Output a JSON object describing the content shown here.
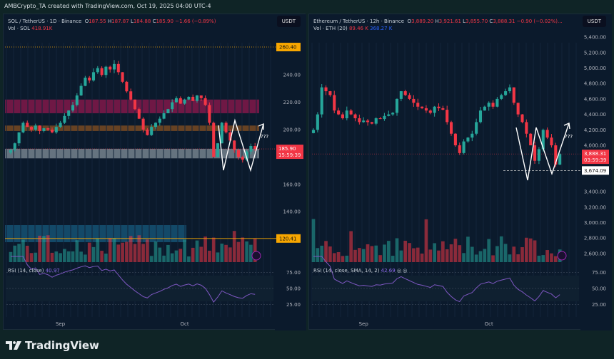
{
  "credit": "AMBCrypto_TA created with TradingView.com, Oct 19, 2025 04:00 UTC-4",
  "brand": "TradingView",
  "charts": [
    {
      "symbol": "SOL / TetherUS · 1D · Binance",
      "o": "187.55",
      "h": "187.87",
      "l": "184.88",
      "c": "185.90",
      "chg": "−1.66 (−0.89%)",
      "vol_label": "Vol · SOL",
      "vol_value": "418.91K",
      "vol_ma": "",
      "currency": "USDT",
      "rsi_label": "RSI (14, close)",
      "rsi_value": "40.97",
      "price_ticks": [
        "240.00",
        "220.00",
        "200.00",
        "160.00",
        "140.00"
      ],
      "tick_values": [
        240,
        220,
        200,
        160,
        140
      ],
      "level_top": {
        "label": "260.40",
        "value": 260.4,
        "color": "#f7a600"
      },
      "level_bottom": {
        "label": "120.41",
        "value": 120.41,
        "color": "#f7a600"
      },
      "last_price": {
        "label": "185.90",
        "countdown": "15:59:39",
        "value": 185.9,
        "color": "#f23645"
      },
      "rsi_ticks": [
        "75.00",
        "50.00",
        "25.00"
      ],
      "time_labels": [
        "Sep",
        "Oct"
      ],
      "annotation": "???",
      "zones": [
        {
          "from": 212,
          "to": 222,
          "color": "#c2185b"
        },
        {
          "from": 199,
          "to": 203,
          "color": "#b5651d"
        },
        {
          "from": 179,
          "to": 186,
          "color": "#b0bec5"
        }
      ],
      "chart_data": {
        "type": "candlestick",
        "interval": "1D",
        "closes": [
          185,
          190,
          198,
          205,
          202,
          200,
          203,
          199,
          201,
          200,
          198,
          202,
          205,
          210,
          214,
          218,
          225,
          232,
          238,
          236,
          242,
          245,
          240,
          246,
          244,
          248,
          242,
          235,
          228,
          222,
          215,
          208,
          200,
          196,
          202,
          205,
          208,
          212,
          215,
          220,
          223,
          219,
          222,
          224,
          221,
          225,
          223,
          218,
          205,
          180,
          190,
          205,
          198,
          192,
          185,
          180,
          178,
          184,
          188,
          185.9
        ]
      }
    },
    {
      "symbol": "Ethereum / TetherUS · 12h · Binance",
      "o": "3,889.20",
      "h": "3,921.61",
      "l": "3,855.70",
      "c": "3,888.31",
      "chg": "−0.90 (−0.02%)...",
      "vol_label": "Vol · ETH (20)",
      "vol_value": "89.46 K",
      "vol_ma": "368.27 K",
      "currency": "USDT",
      "rsi_label": "RSI (14, close, SMA, 14, 2)",
      "rsi_value": "42.69",
      "price_ticks": [
        "5,400.00",
        "5,200.00",
        "5,000.00",
        "4,800.00",
        "4,600.00",
        "4,400.00",
        "4,200.00",
        "4,000.00",
        "3,400.00",
        "3,200.00",
        "3,000.00",
        "2,800.00",
        "2,600.00"
      ],
      "tick_values": [
        5400,
        5200,
        5000,
        4800,
        4600,
        4400,
        4200,
        4000,
        3400,
        3200,
        3000,
        2800,
        2600
      ],
      "last_price": {
        "label": "3,888.31",
        "countdown": "03:59:39",
        "value": 3888.31,
        "color": "#f23645"
      },
      "support": {
        "label": "3,674.09",
        "value": 3674.09
      },
      "rsi_ticks": [
        "75.00",
        "50.00",
        "25.00"
      ],
      "time_labels": [
        "Sep",
        "Oct"
      ],
      "annotation": "???",
      "chart_data": {
        "type": "candlestick",
        "interval": "12h",
        "closes": [
          4200,
          4400,
          4750,
          4700,
          4650,
          4450,
          4400,
          4350,
          4450,
          4400,
          4350,
          4300,
          4320,
          4300,
          4280,
          4350,
          4340,
          4380,
          4400,
          4420,
          4600,
          4700,
          4650,
          4600,
          4550,
          4500,
          4480,
          4450,
          4420,
          4500,
          4480,
          4460,
          4300,
          4150,
          4000,
          3900,
          4050,
          4100,
          4150,
          4300,
          4450,
          4500,
          4550,
          4500,
          4600,
          4650,
          4700,
          4750,
          4550,
          4400,
          4300,
          4150,
          4000,
          3800,
          3950,
          4200,
          4100,
          4000,
          3750,
          3888.31
        ]
      }
    }
  ],
  "colors": {
    "up": "#26a69a",
    "down": "#f23645",
    "rsi": "#7e57c2"
  }
}
